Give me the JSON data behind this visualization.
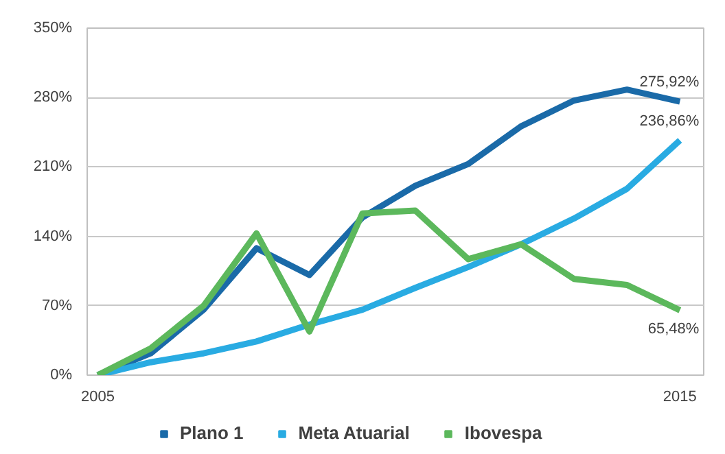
{
  "chart_data": {
    "type": "line",
    "categories": [
      "2005",
      null,
      null,
      null,
      null,
      null,
      null,
      null,
      null,
      null,
      null,
      "2015"
    ],
    "series": [
      {
        "name": "Plano 1",
        "color": "#1a6aa8",
        "values": [
          0,
          22,
          66,
          128,
          101,
          159,
          191,
          213,
          251,
          277,
          288,
          275.92
        ],
        "value_labels": [
          null,
          null,
          null,
          null,
          null,
          null,
          null,
          null,
          null,
          null,
          null,
          "275,92%"
        ]
      },
      {
        "name": "Meta Atuarial",
        "color": "#29abe2",
        "values": [
          0,
          13,
          22,
          34,
          51,
          66,
          88,
          109,
          132,
          158,
          188,
          236.86
        ],
        "value_labels": [
          null,
          null,
          null,
          null,
          null,
          null,
          null,
          null,
          null,
          null,
          null,
          "236,86%"
        ]
      },
      {
        "name": "Ibovespa",
        "color": "#5cb85c",
        "values": [
          0,
          27,
          70,
          143,
          44,
          163,
          166,
          117,
          132,
          97,
          91,
          65.48
        ],
        "value_labels": [
          null,
          null,
          null,
          null,
          null,
          null,
          null,
          null,
          null,
          null,
          null,
          "65,48%"
        ]
      }
    ],
    "ylim": [
      0,
      350
    ],
    "yticks": [
      {
        "value": 0,
        "label": "0%"
      },
      {
        "value": 70,
        "label": "70%"
      },
      {
        "value": 140,
        "label": "140%"
      },
      {
        "value": 210,
        "label": "210%"
      },
      {
        "value": 280,
        "label": "280%"
      },
      {
        "value": 350,
        "label": "350%"
      }
    ],
    "grid": "y",
    "legend": "bottom",
    "marker": "none",
    "line_style": "solid"
  }
}
